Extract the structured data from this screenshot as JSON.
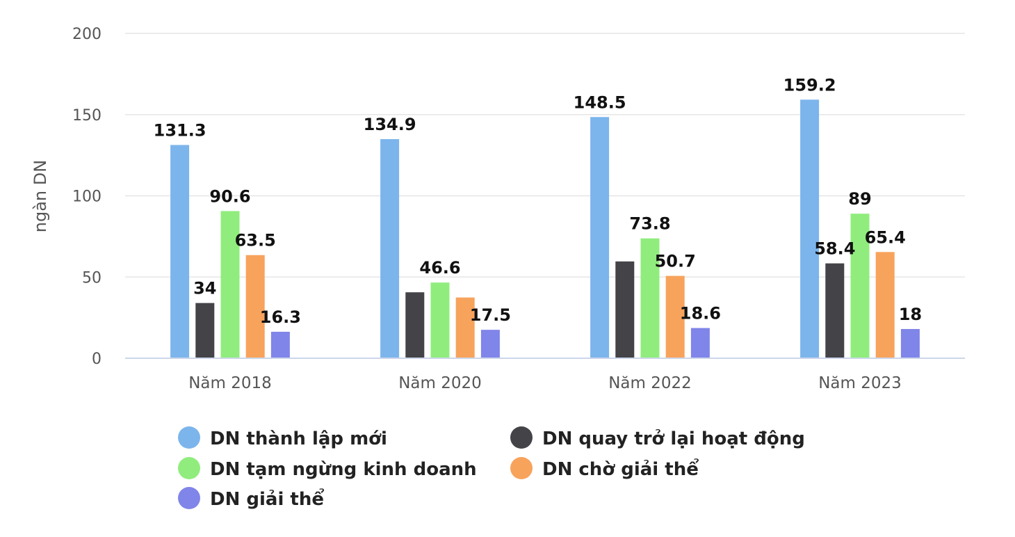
{
  "chart_data": {
    "type": "bar",
    "title": "",
    "xlabel": "",
    "ylabel": "ngàn DN",
    "ylim": [
      0,
      200
    ],
    "yticks": [
      0,
      50,
      100,
      150,
      200
    ],
    "grid": true,
    "legend_position": "bottom",
    "categories": [
      "Năm 2018",
      "Năm 2020",
      "Năm 2022",
      "Năm 2023"
    ],
    "series": [
      {
        "name": "DN thành lập mới",
        "color": "#7cb5ec",
        "values": [
          131.3,
          134.9,
          148.5,
          159.2
        ],
        "labels": [
          "131.3",
          "134.9",
          "148.5",
          "159.2"
        ]
      },
      {
        "name": "DN quay trở lại hoạt động",
        "color": "#434348",
        "values": [
          34,
          40.6,
          59.6,
          58.4
        ],
        "labels": [
          "34",
          "",
          "",
          "58.4"
        ]
      },
      {
        "name": "DN tạm ngừng kinh doanh",
        "color": "#90ed7d",
        "values": [
          90.6,
          46.6,
          73.8,
          89
        ],
        "labels": [
          "90.6",
          "46.6",
          "73.8",
          "89"
        ]
      },
      {
        "name": "DN chờ giải thể",
        "color": "#f7a35c",
        "values": [
          63.5,
          37.4,
          50.7,
          65.4
        ],
        "labels": [
          "63.5",
          "",
          "50.7",
          "65.4"
        ]
      },
      {
        "name": "DN giải thể",
        "color": "#8085e9",
        "values": [
          16.3,
          17.5,
          18.6,
          18
        ],
        "labels": [
          "16.3",
          "17.5",
          "18.6",
          "18"
        ]
      }
    ]
  }
}
